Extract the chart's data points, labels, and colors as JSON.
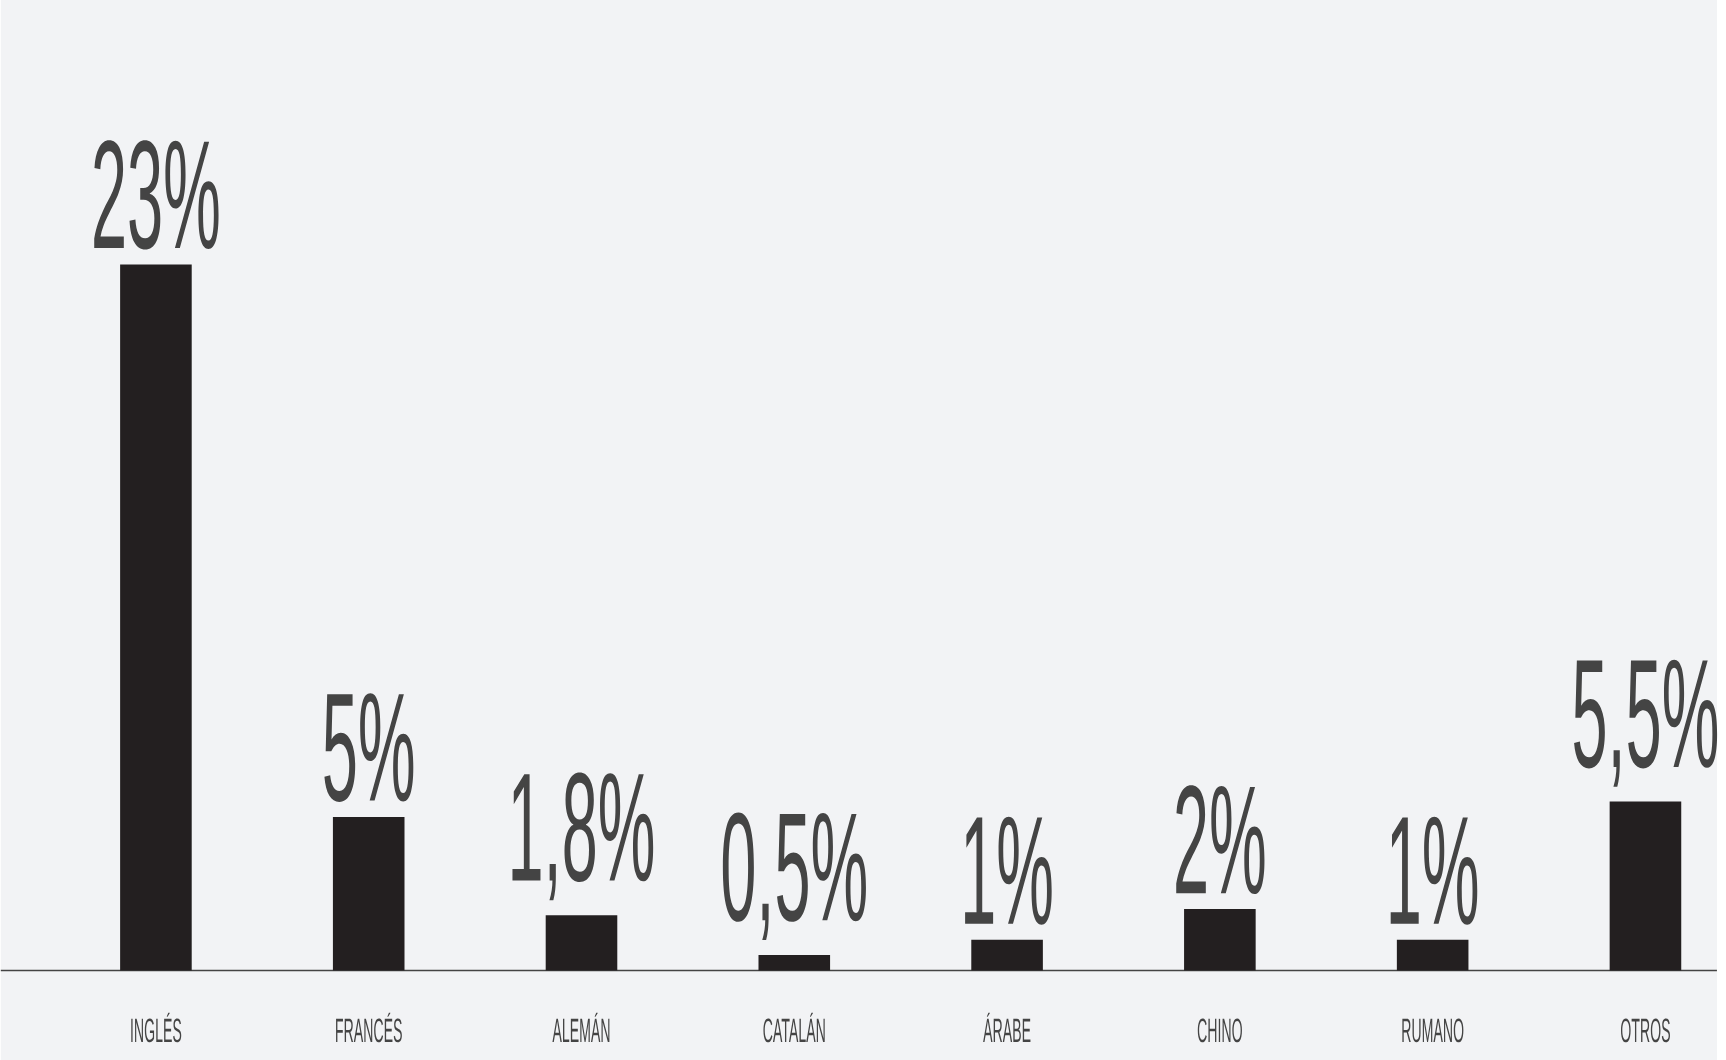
{
  "chart_data": {
    "type": "bar",
    "categories": [
      "INGLÉS",
      "FRANCÉS",
      "ALEMÁN",
      "CATALÁN",
      "ÁRABE",
      "CHINO",
      "RUMANO",
      "OTROS"
    ],
    "values": [
      23,
      5,
      1.8,
      0.5,
      1,
      2,
      1,
      5.5
    ],
    "value_labels": [
      "23%",
      "5%",
      "1,8%",
      "0,5%",
      "1%",
      "2%",
      "1%",
      "5,5%"
    ],
    "color": "#231f20"
  }
}
